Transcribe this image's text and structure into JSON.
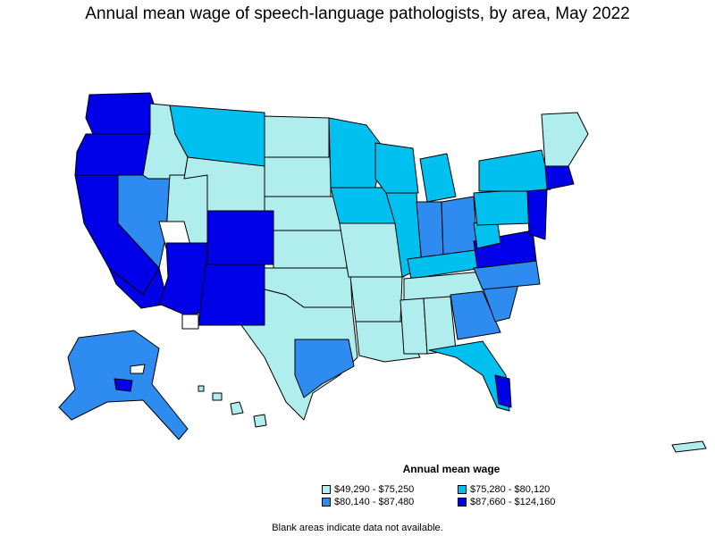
{
  "title": "Annual mean wage of speech-language pathologists, by area, May 2022",
  "legend": {
    "title": "Annual mean wage",
    "items": [
      {
        "label": "$49,290 - $75,250",
        "color": "#b0eeee"
      },
      {
        "label": "$75,280 - $80,120",
        "color": "#00c0f0"
      },
      {
        "label": "$80,140 - $87,480",
        "color": "#2e8bf0"
      },
      {
        "label": "$87,660 - $124,160",
        "color": "#0000e8"
      }
    ]
  },
  "footnote": "Blank areas indicate data not available.",
  "colors": {
    "tier1": "#b0eeee",
    "tier2": "#00c0f0",
    "tier3": "#2e8bf0",
    "tier4": "#0000e8",
    "border": "#000000",
    "blank": "#ffffff"
  }
}
